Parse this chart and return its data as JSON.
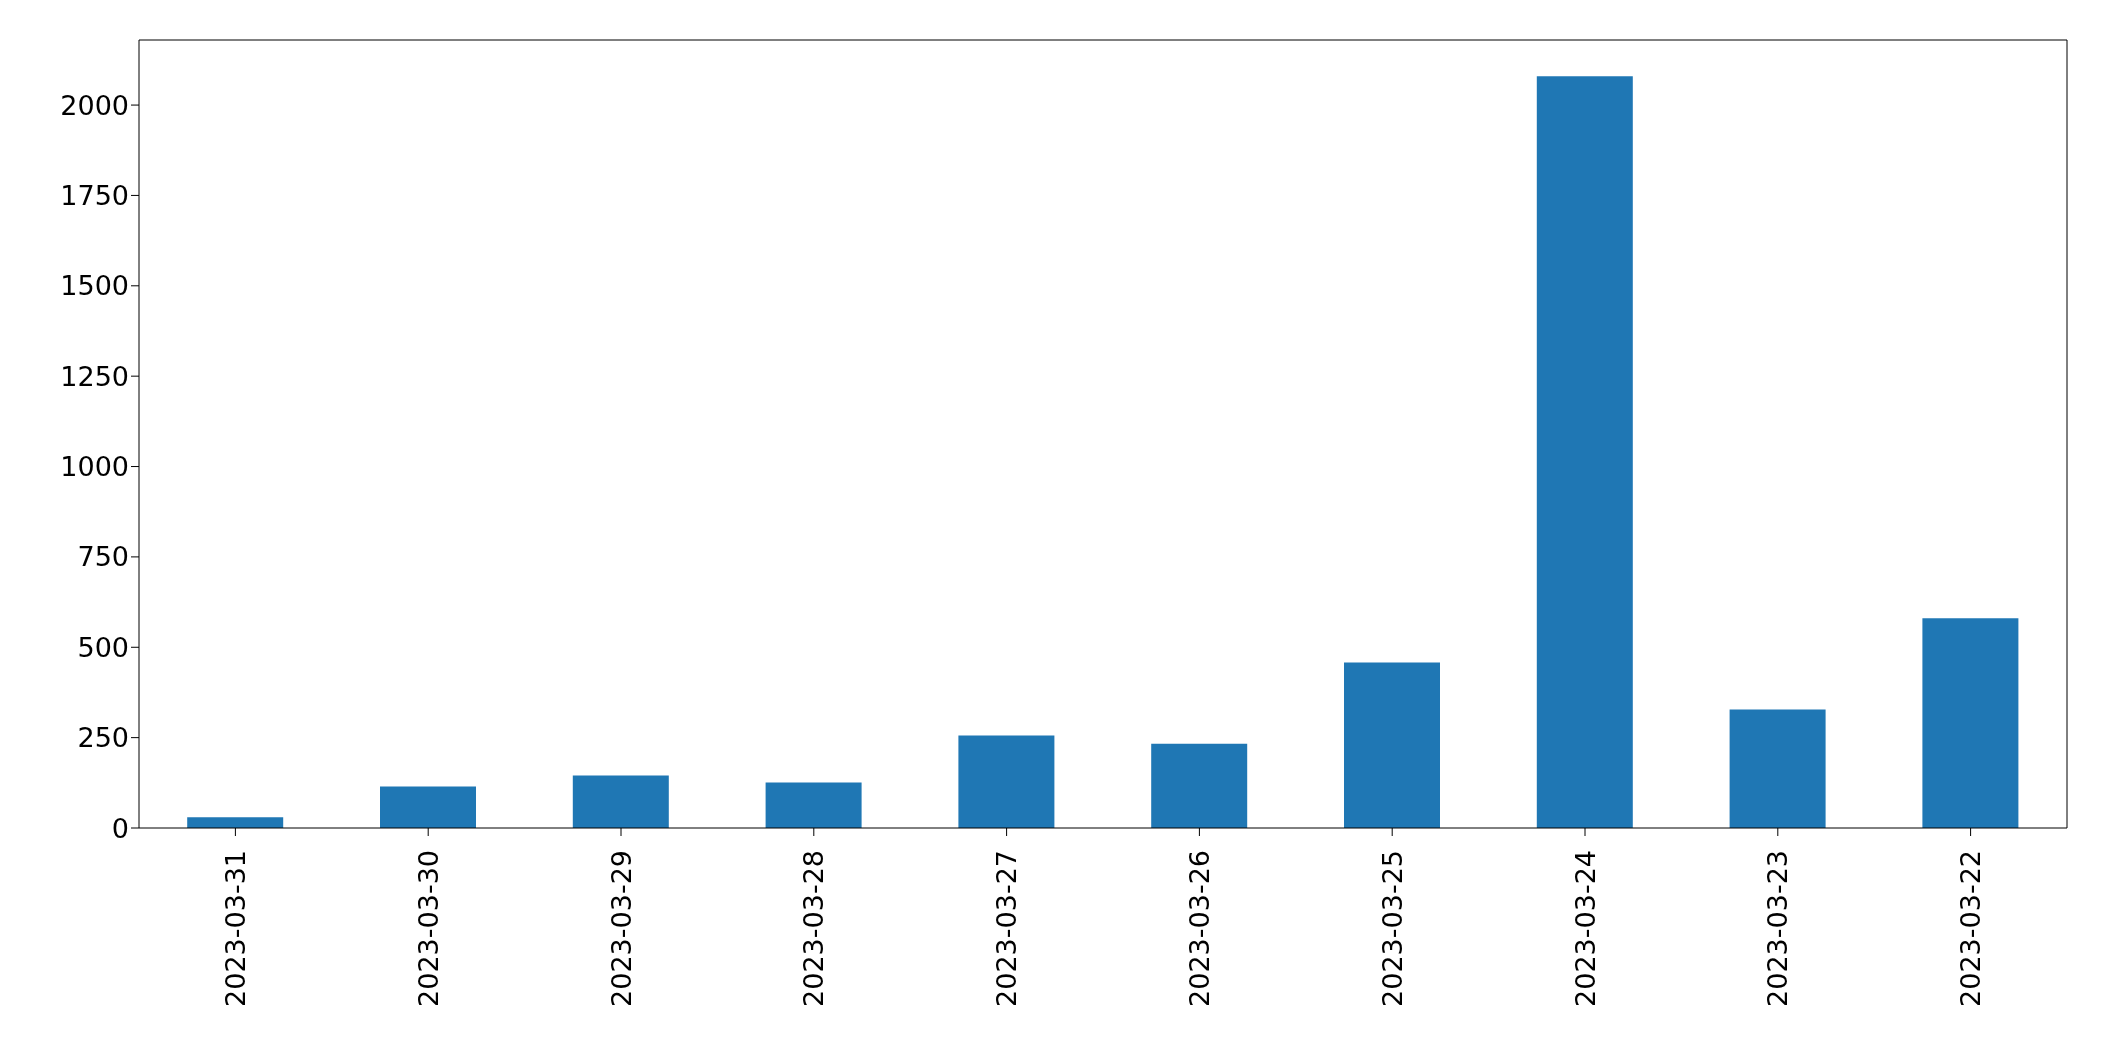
{
  "chart_data": {
    "type": "bar",
    "categories": [
      "2023-03-31",
      "2023-03-30",
      "2023-03-29",
      "2023-03-28",
      "2023-03-27",
      "2023-03-26",
      "2023-03-25",
      "2023-03-24",
      "2023-03-23",
      "2023-03-22"
    ],
    "values": [
      30,
      115,
      145,
      126,
      256,
      233,
      458,
      2080,
      328,
      580
    ],
    "color": "#1f77b4",
    "ylim": [
      0,
      2180
    ],
    "yticks": [
      0,
      250,
      500,
      750,
      1000,
      1250,
      1500,
      1750,
      2000
    ],
    "grid": false
  }
}
